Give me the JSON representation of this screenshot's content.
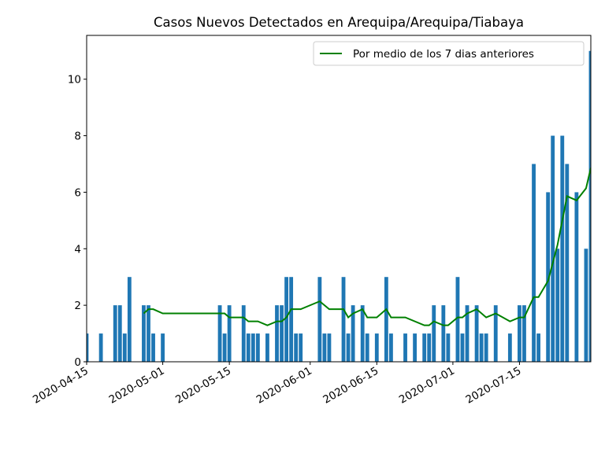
{
  "chart_data": {
    "type": "bar",
    "title": "Casos Nuevos Detectados en Arequipa/Arequipa/Tiabaya",
    "color": "#1f77b4",
    "x": [
      "2020-04-15",
      "2020-04-18",
      "2020-04-21",
      "2020-04-22",
      "2020-04-23",
      "2020-04-24",
      "2020-04-27",
      "2020-04-28",
      "2020-04-29",
      "2020-05-01",
      "2020-05-13",
      "2020-05-14",
      "2020-05-15",
      "2020-05-18",
      "2020-05-19",
      "2020-05-20",
      "2020-05-21",
      "2020-05-23",
      "2020-05-25",
      "2020-05-26",
      "2020-05-27",
      "2020-05-28",
      "2020-05-29",
      "2020-05-30",
      "2020-06-03",
      "2020-06-04",
      "2020-06-05",
      "2020-06-08",
      "2020-06-09",
      "2020-06-10",
      "2020-06-12",
      "2020-06-13",
      "2020-06-15",
      "2020-06-17",
      "2020-06-18",
      "2020-06-21",
      "2020-06-23",
      "2020-06-25",
      "2020-06-26",
      "2020-06-27",
      "2020-06-29",
      "2020-06-30",
      "2020-07-02",
      "2020-07-03",
      "2020-07-04",
      "2020-07-06",
      "2020-07-07",
      "2020-07-08",
      "2020-07-10",
      "2020-07-13",
      "2020-07-15",
      "2020-07-16",
      "2020-07-18",
      "2020-07-19",
      "2020-07-21",
      "2020-07-22",
      "2020-07-23",
      "2020-07-24",
      "2020-07-25",
      "2020-07-27",
      "2020-07-29",
      "2020-07-30"
    ],
    "values": [
      1,
      1,
      2,
      2,
      1,
      3,
      2,
      2,
      1,
      1,
      2,
      1,
      2,
      2,
      1,
      1,
      1,
      1,
      2,
      2,
      3,
      3,
      1,
      1,
      3,
      1,
      1,
      3,
      1,
      2,
      2,
      1,
      1,
      3,
      1,
      1,
      1,
      1,
      1,
      2,
      2,
      1,
      3,
      1,
      2,
      2,
      1,
      1,
      2,
      1,
      2,
      2,
      7,
      1,
      6,
      8,
      4,
      8,
      7,
      6,
      4,
      11
    ],
    "overlay": {
      "type": "line",
      "name": "Por medio de los 7 dias anteriores",
      "color": "#008000",
      "x": [
        "2020-04-27",
        "2020-04-28",
        "2020-04-29",
        "2020-05-01",
        "2020-05-13",
        "2020-05-14",
        "2020-05-15",
        "2020-05-18",
        "2020-05-19",
        "2020-05-21",
        "2020-05-23",
        "2020-05-25",
        "2020-05-26",
        "2020-05-27",
        "2020-05-28",
        "2020-05-30",
        "2020-06-03",
        "2020-06-05",
        "2020-06-08",
        "2020-06-09",
        "2020-06-10",
        "2020-06-12",
        "2020-06-13",
        "2020-06-15",
        "2020-06-17",
        "2020-06-18",
        "2020-06-21",
        "2020-06-25",
        "2020-06-26",
        "2020-06-27",
        "2020-06-29",
        "2020-06-30",
        "2020-07-02",
        "2020-07-03",
        "2020-07-04",
        "2020-07-06",
        "2020-07-08",
        "2020-07-10",
        "2020-07-13",
        "2020-07-15",
        "2020-07-16",
        "2020-07-18",
        "2020-07-19",
        "2020-07-21",
        "2020-07-23",
        "2020-07-25",
        "2020-07-27",
        "2020-07-29",
        "2020-07-30"
      ],
      "values": [
        1.71,
        1.86,
        1.86,
        1.71,
        1.71,
        1.71,
        1.57,
        1.57,
        1.43,
        1.43,
        1.29,
        1.43,
        1.43,
        1.57,
        1.86,
        1.86,
        2.14,
        1.86,
        1.86,
        1.57,
        1.71,
        1.86,
        1.57,
        1.57,
        1.86,
        1.57,
        1.57,
        1.29,
        1.29,
        1.43,
        1.29,
        1.29,
        1.57,
        1.57,
        1.71,
        1.86,
        1.57,
        1.71,
        1.43,
        1.57,
        1.57,
        2.29,
        2.29,
        2.86,
        4.14,
        5.86,
        5.71,
        6.14,
        6.86
      ]
    },
    "xlim": [
      "2020-04-15",
      "2020-07-30"
    ],
    "xticks": [
      "2020-04-15",
      "2020-05-01",
      "2020-05-15",
      "2020-06-01",
      "2020-06-15",
      "2020-07-01",
      "2020-07-15"
    ],
    "ylim": [
      0,
      11.55
    ],
    "yticks": [
      0,
      2,
      4,
      6,
      8,
      10
    ],
    "legend": "upper right"
  }
}
